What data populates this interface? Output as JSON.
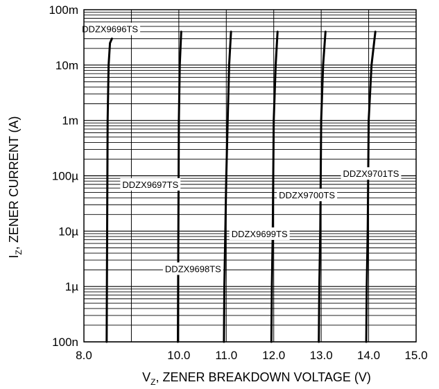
{
  "chart_data": {
    "type": "line",
    "title": "",
    "xlabel": "V_Z, ZENER BREAKDOWN VOLTAGE (V)",
    "ylabel": "I_Z, ZENER CURRENT (A)",
    "xlabel_main": "V",
    "xlabel_sub": "Z",
    "xlabel_rest": ", ZENER BREAKDOWN VOLTAGE (V)",
    "ylabel_main": "I",
    "ylabel_sub": "Z",
    "ylabel_rest": ", ZENER CURRENT (A)",
    "x_scale": "linear",
    "y_scale": "log",
    "xlim": [
      8.0,
      15.0
    ],
    "ylim": [
      1e-07,
      0.1
    ],
    "grid": true,
    "x_tick_values": [
      8,
      10,
      11,
      12,
      13,
      14,
      15
    ],
    "x_tick_labels": [
      "8.0",
      "10.0",
      "11.0",
      "12.0",
      "13.0",
      "14.0",
      "15.0"
    ],
    "y_tick_values": [
      1e-07,
      1e-06,
      1e-05,
      0.0001,
      0.001,
      0.01,
      0.1
    ],
    "y_tick_labels": [
      "100n",
      "1µ",
      "10µ",
      "100µ",
      "1m",
      "10m",
      "100m"
    ],
    "series": [
      {
        "name": "DDZX9696TS",
        "x": [
          8.48,
          8.49,
          8.5,
          8.52,
          8.55,
          8.59
        ],
        "y": [
          1e-07,
          1e-05,
          0.001,
          0.01,
          0.025,
          0.03
        ]
      },
      {
        "name": "DDZX9697TS",
        "x": [
          9.98,
          9.99,
          10.0,
          10.02,
          10.05
        ],
        "y": [
          1e-07,
          1e-05,
          0.001,
          0.01,
          0.04
        ]
      },
      {
        "name": "DDZX9698TS",
        "x": [
          10.95,
          10.96,
          10.98,
          11.0,
          11.03,
          11.06,
          11.1
        ],
        "y": [
          1e-07,
          1e-06,
          1e-05,
          0.0001,
          0.001,
          0.01,
          0.04
        ]
      },
      {
        "name": "DDZX9699TS",
        "x": [
          11.95,
          11.96,
          11.98,
          12.0,
          12.04,
          12.08
        ],
        "y": [
          1e-07,
          1e-06,
          1e-05,
          0.001,
          0.01,
          0.04
        ]
      },
      {
        "name": "DDZX9700TS",
        "x": [
          12.95,
          12.96,
          12.98,
          13.0,
          13.04,
          13.09
        ],
        "y": [
          1e-07,
          1e-06,
          1e-05,
          0.001,
          0.01,
          0.04
        ]
      },
      {
        "name": "DDZX9701TS",
        "x": [
          13.95,
          13.96,
          13.98,
          14.0,
          14.06,
          14.14
        ],
        "y": [
          1e-07,
          1e-06,
          1e-05,
          0.001,
          0.01,
          0.04
        ]
      }
    ],
    "annotations": [
      {
        "text": "DDZX9696TS",
        "x": 8.55,
        "y": 0.045
      },
      {
        "text": "DDZX9697TS",
        "x": 9.4,
        "y": 7e-05
      },
      {
        "text": "DDZX9698TS",
        "x": 10.3,
        "y": 2.1e-06
      },
      {
        "text": "DDZX9699TS",
        "x": 11.7,
        "y": 9e-06
      },
      {
        "text": "DDZX9700TS",
        "x": 12.7,
        "y": 4.5e-05
      },
      {
        "text": "DDZX9701TS",
        "x": 14.05,
        "y": 0.00011
      }
    ]
  }
}
